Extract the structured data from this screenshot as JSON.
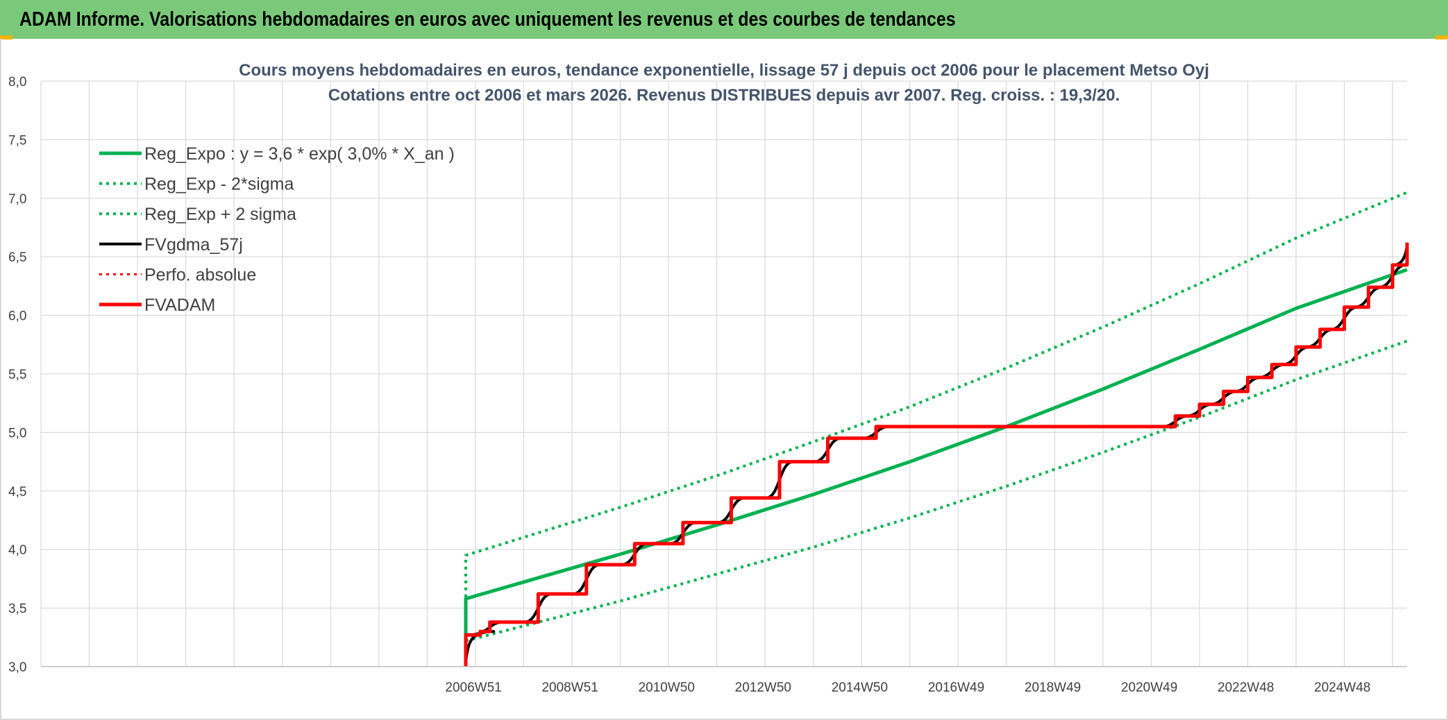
{
  "page": {
    "header_title": "ADAM Informe. Valorisations hebdomadaires en euros avec uniquement les revenus et des courbes de tendances",
    "header_color": "#7ac97a"
  },
  "chart_data": {
    "type": "line",
    "title_lines": [
      "Cours moyens hebdomadaires en euros, tendance exponentielle, lissage 57 j depuis oct 2006 pour le placement Metso Oyj",
      "Cotations entre oct 2006 et mars 2026. Revenus DISTRIBUES depuis avr 2007. Reg. croiss. : 19,3/20."
    ],
    "xlabel": "",
    "ylabel": "",
    "ylim": [
      3.0,
      8.0
    ],
    "xlim": [
      1998.0,
      2026.3
    ],
    "y_ticks": [
      "3,0",
      "3,5",
      "4,0",
      "4,5",
      "5,0",
      "5,5",
      "6,0",
      "6,5",
      "7,0",
      "7,5",
      "8,0"
    ],
    "x_ticks": [
      {
        "label": "2006W51",
        "x": 2006.96
      },
      {
        "label": "2008W51",
        "x": 2008.96
      },
      {
        "label": "2010W50",
        "x": 2010.96
      },
      {
        "label": "2012W50",
        "x": 2012.96
      },
      {
        "label": "2014W50",
        "x": 2014.96
      },
      {
        "label": "2016W49",
        "x": 2016.96
      },
      {
        "label": "2018W49",
        "x": 2018.96
      },
      {
        "label": "2020W49",
        "x": 2020.96
      },
      {
        "label": "2022W48",
        "x": 2022.96
      },
      {
        "label": "2024W48",
        "x": 2024.96
      }
    ],
    "grid": true,
    "legend_position": "top-left",
    "regression": {
      "a": 3.6,
      "rate": 0.03,
      "x0": 2006.8,
      "x_end": 2026.3,
      "sigma_factor_low": 0.9,
      "sigma_factor_high": 1.1
    },
    "series": [
      {
        "name": "Reg_Expo : y = 3,6 * exp( 3,0% *  X_an )",
        "color": "#00b050",
        "style": "solid",
        "width": 5,
        "values": [
          [
            2006.8,
            3.0
          ],
          [
            2006.8,
            3.58
          ],
          [
            2010.0,
            3.96
          ],
          [
            2012.0,
            4.21
          ],
          [
            2014.0,
            4.47
          ],
          [
            2016.0,
            4.75
          ],
          [
            2018.0,
            5.05
          ],
          [
            2020.0,
            5.37
          ],
          [
            2022.0,
            5.71
          ],
          [
            2024.0,
            6.06
          ],
          [
            2026.3,
            6.39
          ]
        ]
      },
      {
        "name": "Reg_Exp - 2*sigma",
        "color": "#00b050",
        "style": "dotted",
        "width": 4,
        "values": [
          [
            2006.8,
            3.22
          ],
          [
            2010.0,
            3.56
          ],
          [
            2012.0,
            3.79
          ],
          [
            2014.0,
            4.02
          ],
          [
            2016.0,
            4.27
          ],
          [
            2018.0,
            4.54
          ],
          [
            2020.0,
            4.83
          ],
          [
            2022.0,
            5.13
          ],
          [
            2024.0,
            5.45
          ],
          [
            2026.3,
            5.78
          ]
        ]
      },
      {
        "name": "Reg_Exp + 2 sigma",
        "color": "#00b050",
        "style": "dotted",
        "width": 4,
        "values": [
          [
            2006.8,
            3.0
          ],
          [
            2006.8,
            3.95
          ],
          [
            2010.0,
            4.36
          ],
          [
            2012.0,
            4.63
          ],
          [
            2014.0,
            4.92
          ],
          [
            2016.0,
            5.22
          ],
          [
            2018.0,
            5.55
          ],
          [
            2020.0,
            5.9
          ],
          [
            2022.0,
            6.27
          ],
          [
            2024.0,
            6.66
          ],
          [
            2026.3,
            7.05
          ]
        ]
      },
      {
        "name": "FVgdma_57j",
        "color": "#000000",
        "style": "smooth-steps",
        "width": 4,
        "steps": [
          [
            2006.8,
            3.0
          ],
          [
            2006.8,
            3.27
          ],
          [
            2007.1,
            3.3
          ],
          [
            2007.3,
            3.38
          ],
          [
            2008.3,
            3.62
          ],
          [
            2009.3,
            3.87
          ],
          [
            2010.3,
            4.05
          ],
          [
            2011.3,
            4.23
          ],
          [
            2012.3,
            4.44
          ],
          [
            2013.3,
            4.75
          ],
          [
            2014.3,
            4.95
          ],
          [
            2015.3,
            5.05
          ],
          [
            2020.0,
            5.05
          ],
          [
            2021.5,
            5.14
          ],
          [
            2022.0,
            5.24
          ],
          [
            2022.5,
            5.35
          ],
          [
            2023.0,
            5.47
          ],
          [
            2023.5,
            5.58
          ],
          [
            2024.0,
            5.73
          ],
          [
            2024.5,
            5.88
          ],
          [
            2025.0,
            6.07
          ],
          [
            2025.5,
            6.24
          ],
          [
            2026.0,
            6.43
          ],
          [
            2026.3,
            6.62
          ]
        ]
      },
      {
        "name": "Perfo. absolue",
        "color": "#ff0000",
        "style": "dotted",
        "width": 3,
        "values": []
      },
      {
        "name": "FVADAM",
        "color": "#ff0000",
        "style": "steps",
        "width": 5,
        "steps": [
          [
            2006.8,
            3.0
          ],
          [
            2006.8,
            3.27
          ],
          [
            2007.1,
            3.3
          ],
          [
            2007.3,
            3.38
          ],
          [
            2008.3,
            3.62
          ],
          [
            2009.3,
            3.87
          ],
          [
            2010.3,
            4.05
          ],
          [
            2011.3,
            4.23
          ],
          [
            2012.3,
            4.44
          ],
          [
            2013.3,
            4.75
          ],
          [
            2014.3,
            4.95
          ],
          [
            2015.3,
            5.05
          ],
          [
            2020.0,
            5.05
          ],
          [
            2021.5,
            5.14
          ],
          [
            2022.0,
            5.24
          ],
          [
            2022.5,
            5.35
          ],
          [
            2023.0,
            5.47
          ],
          [
            2023.5,
            5.58
          ],
          [
            2024.0,
            5.73
          ],
          [
            2024.5,
            5.88
          ],
          [
            2025.0,
            6.07
          ],
          [
            2025.5,
            6.24
          ],
          [
            2026.0,
            6.43
          ],
          [
            2026.3,
            6.62
          ]
        ]
      }
    ]
  }
}
